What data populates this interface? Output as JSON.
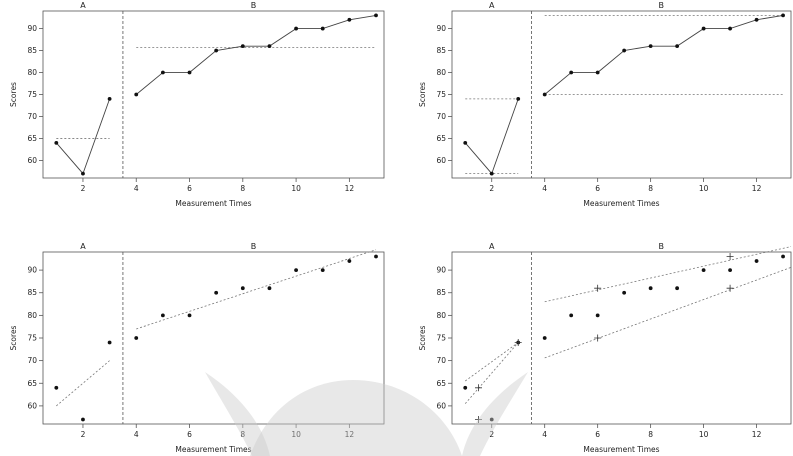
{
  "colors": {
    "line": "#444444",
    "dots": "#111111",
    "ref": "#777777",
    "watermark": "#c9c9c9"
  },
  "chart_data": [
    {
      "type": "line",
      "panel": "top-left",
      "xlabel": "Measurement Times",
      "ylabel": "Scores",
      "phases": [
        "A",
        "B"
      ],
      "phase_change_at": 3.5,
      "x_ticks": [
        2,
        4,
        6,
        8,
        10,
        12
      ],
      "y_ticks": [
        60,
        65,
        70,
        75,
        80,
        85,
        90
      ],
      "xlim": [
        0.5,
        13.3
      ],
      "ylim": [
        56,
        94
      ],
      "series": [
        {
          "phase": "A",
          "x": [
            1,
            2,
            3
          ],
          "y": [
            64,
            57,
            74
          ]
        },
        {
          "phase": "B",
          "x": [
            4,
            5,
            6,
            7,
            8,
            9,
            10,
            11,
            12,
            13
          ],
          "y": [
            75,
            80,
            80,
            85,
            86,
            86,
            90,
            90,
            92,
            93
          ]
        }
      ],
      "reference_lines": [
        {
          "phase": "A",
          "kind": "mean",
          "x": [
            1,
            3
          ],
          "y": [
            65,
            65
          ]
        },
        {
          "phase": "B",
          "kind": "mean",
          "x": [
            4,
            13
          ],
          "y": [
            85.7,
            85.7
          ]
        }
      ]
    },
    {
      "type": "line",
      "panel": "top-right",
      "xlabel": "Measurement Times",
      "ylabel": "Scores",
      "phases": [
        "A",
        "B"
      ],
      "phase_change_at": 3.5,
      "x_ticks": [
        2,
        4,
        6,
        8,
        10,
        12
      ],
      "y_ticks": [
        60,
        65,
        70,
        75,
        80,
        85,
        90
      ],
      "xlim": [
        0.5,
        13.3
      ],
      "ylim": [
        56,
        94
      ],
      "series": [
        {
          "phase": "A",
          "x": [
            1,
            2,
            3
          ],
          "y": [
            64,
            57,
            74
          ]
        },
        {
          "phase": "B",
          "x": [
            4,
            5,
            6,
            7,
            8,
            9,
            10,
            11,
            12,
            13
          ],
          "y": [
            75,
            80,
            80,
            85,
            86,
            86,
            90,
            90,
            92,
            93
          ]
        }
      ],
      "reference_lines": [
        {
          "phase": "A",
          "kind": "max",
          "x": [
            1,
            3
          ],
          "y": [
            74,
            74
          ]
        },
        {
          "phase": "A",
          "kind": "min",
          "x": [
            1,
            3
          ],
          "y": [
            57,
            57
          ]
        },
        {
          "phase": "B",
          "kind": "max",
          "x": [
            4,
            13
          ],
          "y": [
            93,
            93
          ]
        },
        {
          "phase": "B",
          "kind": "min",
          "x": [
            4,
            13
          ],
          "y": [
            75,
            75
          ]
        }
      ]
    },
    {
      "type": "scatter",
      "panel": "bottom-left",
      "xlabel": "Measurement Times",
      "ylabel": "Scores",
      "phases": [
        "A",
        "B"
      ],
      "phase_change_at": 3.5,
      "x_ticks": [
        2,
        4,
        6,
        8,
        10,
        12
      ],
      "y_ticks": [
        60,
        65,
        70,
        75,
        80,
        85,
        90
      ],
      "xlim": [
        0.5,
        13.3
      ],
      "ylim": [
        56,
        94
      ],
      "series": [
        {
          "phase": "A",
          "x": [
            1,
            2,
            3
          ],
          "y": [
            64,
            57,
            74
          ]
        },
        {
          "phase": "B",
          "x": [
            4,
            5,
            6,
            7,
            8,
            9,
            10,
            11,
            12,
            13
          ],
          "y": [
            75,
            80,
            80,
            85,
            86,
            86,
            90,
            90,
            92,
            93
          ]
        }
      ],
      "reference_lines": [
        {
          "phase": "A",
          "kind": "trend",
          "x": [
            1,
            3
          ],
          "y": [
            60,
            70
          ]
        },
        {
          "phase": "B",
          "kind": "trend",
          "x": [
            4,
            13
          ],
          "y": [
            77,
            94.5
          ]
        }
      ]
    },
    {
      "type": "scatter",
      "panel": "bottom-right",
      "xlabel": "Measurement Times",
      "ylabel": "Scores",
      "phases": [
        "A",
        "B"
      ],
      "phase_change_at": 3.5,
      "x_ticks": [
        2,
        4,
        6,
        8,
        10,
        12
      ],
      "y_ticks": [
        60,
        65,
        70,
        75,
        80,
        85,
        90
      ],
      "xlim": [
        0.5,
        13.3
      ],
      "ylim": [
        56,
        94
      ],
      "series": [
        {
          "phase": "A",
          "x": [
            1,
            2,
            3
          ],
          "y": [
            64,
            57,
            74
          ]
        },
        {
          "phase": "B",
          "x": [
            4,
            5,
            6,
            7,
            8,
            9,
            10,
            11,
            12,
            13
          ],
          "y": [
            75,
            80,
            80,
            85,
            86,
            86,
            90,
            90,
            92,
            93
          ]
        }
      ],
      "split_middle_markers": [
        {
          "phase": "A",
          "x": [
            1.5,
            1.5,
            3
          ],
          "y": [
            64,
            57,
            74
          ]
        },
        {
          "phase": "B",
          "x": [
            6,
            6,
            11,
            11
          ],
          "y": [
            86,
            75,
            93,
            86
          ]
        }
      ],
      "reference_lines": [
        {
          "phase": "A",
          "kind": "split-middle-upper",
          "x": [
            1,
            3
          ],
          "y": [
            65.5,
            74
          ]
        },
        {
          "phase": "A",
          "kind": "split-middle-lower",
          "x": [
            1,
            3
          ],
          "y": [
            60.5,
            74
          ]
        },
        {
          "phase": "B",
          "kind": "split-middle-upper",
          "x": [
            4,
            13.3
          ],
          "y": [
            83,
            95.2
          ]
        },
        {
          "phase": "B",
          "kind": "split-middle-lower",
          "x": [
            4,
            13.3
          ],
          "y": [
            70.6,
            90.6
          ]
        }
      ]
    }
  ]
}
